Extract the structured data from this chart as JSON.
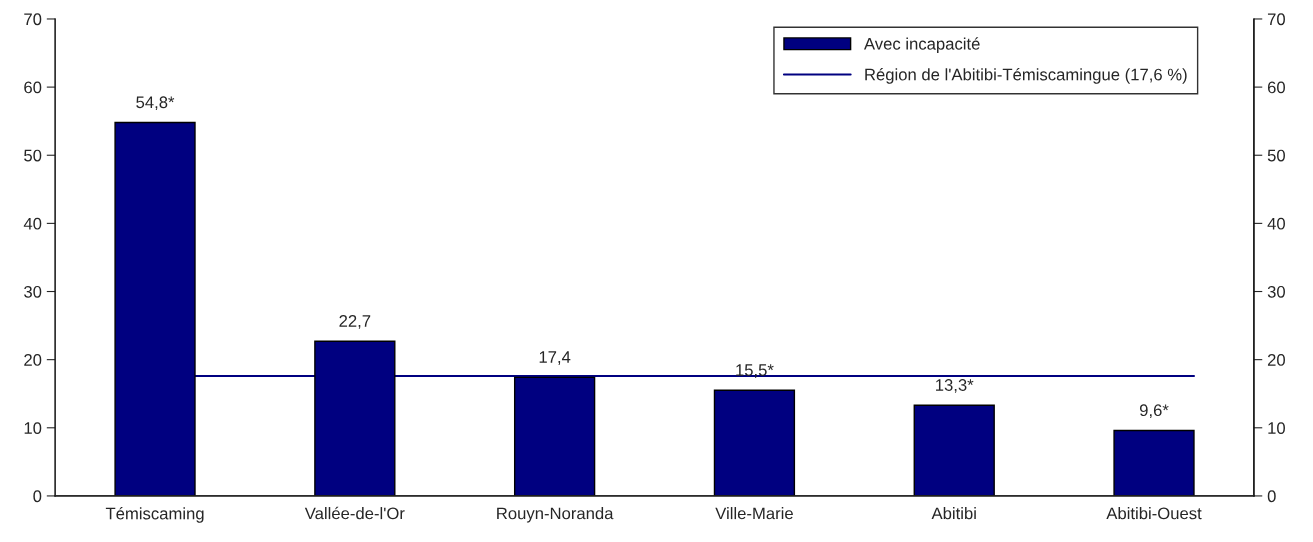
{
  "chart_data": {
    "type": "bar",
    "categories": [
      "Témiscaming",
      "Vallée-de-l'Or",
      "Rouyn-Noranda",
      "Ville-Marie",
      "Abitibi",
      "Abitibi-Ouest"
    ],
    "series": [
      {
        "name": "Avec incapacité",
        "color": "#000080",
        "values": [
          54.8,
          22.7,
          17.4,
          15.5,
          13.3,
          9.6
        ],
        "value_labels": [
          "54,8*",
          "22,7",
          "17,4",
          "15,5*",
          "13,3*",
          "9,6*"
        ]
      },
      {
        "name": "Région de l'Abitibi-Témiscamingue (17,6 %)",
        "type": "line",
        "color": "#000080",
        "values": [
          17.6,
          17.6,
          17.6,
          17.6,
          17.6,
          17.6
        ]
      }
    ],
    "ylim": [
      0,
      70
    ],
    "yticks": [
      0,
      10,
      20,
      30,
      40,
      50,
      60,
      70
    ],
    "y2lim": [
      0,
      70
    ],
    "y2ticks": [
      0,
      10,
      20,
      30,
      40,
      50,
      60,
      70
    ],
    "grid": false,
    "legend": "top right"
  }
}
